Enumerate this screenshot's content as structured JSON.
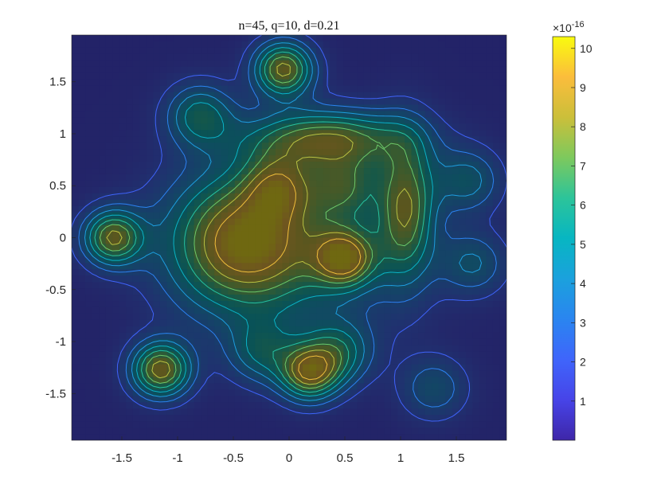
{
  "chart_data": {
    "type": "heatmap",
    "subtype": "filled-contour",
    "title": "n=45, q=10, d=0.21",
    "xlabel": "",
    "ylabel": "",
    "xlim": [
      -1.95,
      1.95
    ],
    "ylim": [
      -1.95,
      1.95
    ],
    "x_ticks": [
      -1.5,
      -1,
      -0.5,
      0,
      0.5,
      1,
      1.5
    ],
    "x_tick_labels": [
      "-1.5",
      "-1",
      "-0.5",
      "0",
      "0.5",
      "1",
      "1.5"
    ],
    "y_ticks": [
      1.5,
      1,
      0.5,
      0,
      -0.5,
      -1,
      -1.5
    ],
    "y_tick_labels": [
      "1.5",
      "1",
      "0.5",
      "0",
      "-0.5",
      "-1",
      "-1.5"
    ],
    "colormap": "parula",
    "colorbar": {
      "range": [
        0,
        10.3
      ],
      "ticks": [
        1,
        2,
        3,
        4,
        5,
        6,
        7,
        8,
        9,
        10
      ],
      "tick_labels": [
        "1",
        "2",
        "3",
        "4",
        "5",
        "6",
        "7",
        "8",
        "9",
        "10"
      ],
      "exponent_base": "×10",
      "exponent_power": "-16"
    },
    "grid": false,
    "surface_features": [
      {
        "kind": "peak",
        "x": -0.45,
        "y": -0.05,
        "value": 8.6
      },
      {
        "kind": "ridge",
        "x": 0.35,
        "y": 0.95,
        "value": 7.7
      },
      {
        "kind": "ridge",
        "x": 1.05,
        "y": 0.3,
        "value": 7.5
      },
      {
        "kind": "spike",
        "x": -1.58,
        "y": 0.0,
        "value": 8.4
      },
      {
        "kind": "spike",
        "x": -0.05,
        "y": 1.62,
        "value": 8.8
      },
      {
        "kind": "spike",
        "x": 0.18,
        "y": -1.3,
        "value": 8.6
      },
      {
        "kind": "spike",
        "x": -1.15,
        "y": -1.27,
        "value": 9.0
      },
      {
        "kind": "spike",
        "x": 0.5,
        "y": -0.2,
        "value": 8.0
      },
      {
        "kind": "bump",
        "x": -0.8,
        "y": 1.18,
        "value": 5.8
      },
      {
        "kind": "bump",
        "x": -0.1,
        "y": 0.5,
        "value": 5.5
      },
      {
        "kind": "bump",
        "x": 0.5,
        "y": 0.5,
        "value": 5.2
      },
      {
        "kind": "bump",
        "x": 0.45,
        "y": -1.1,
        "value": 5.4
      },
      {
        "kind": "bump",
        "x": -0.25,
        "y": -1.1,
        "value": 4.8
      },
      {
        "kind": "bump",
        "x": 1.6,
        "y": 0.55,
        "value": 4.8
      },
      {
        "kind": "bump",
        "x": 1.65,
        "y": -0.25,
        "value": 4.4
      },
      {
        "kind": "bump",
        "x": 1.3,
        "y": -1.45,
        "value": 4.2
      }
    ]
  }
}
